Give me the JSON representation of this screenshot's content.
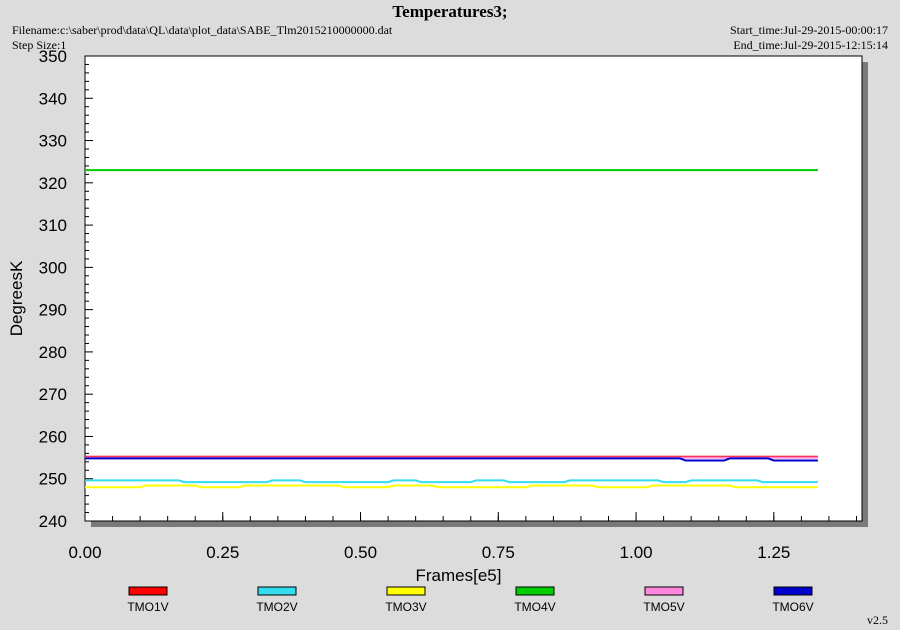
{
  "header": {
    "title": "Temperatures3;",
    "filename": "Filename:c:\\saber\\prod\\data\\QL\\data\\plot_data\\SABE_Tlm2015210000000.dat",
    "step_size": "Step Size:1",
    "start_time": "Start_time:Jul-29-2015-00:00:17",
    "end_time": "End_time:Jul-29-2015-12:15:14"
  },
  "version": "v2.5",
  "chart_data": {
    "type": "line",
    "title": "Temperatures3;",
    "xlabel": "Frames[e5]",
    "ylabel": "DegreesK",
    "xlim": [
      0,
      1.41
    ],
    "ylim": [
      240,
      350
    ],
    "xticks": [
      0.0,
      0.25,
      0.5,
      0.75,
      1.0,
      1.25
    ],
    "xtick_labels": [
      "0.00",
      "0.25",
      "0.50",
      "0.75",
      "1.00",
      "1.25"
    ],
    "yticks": [
      240,
      250,
      260,
      270,
      280,
      290,
      300,
      310,
      320,
      330,
      340,
      350
    ],
    "ytick_labels": [
      "240",
      "250",
      "260",
      "270",
      "280",
      "290",
      "300",
      "310",
      "320",
      "330",
      "340",
      "350"
    ],
    "grid": false,
    "legend_position": "bottom",
    "series": [
      {
        "name": "TMO1V",
        "color": "#ff0000",
        "x": [
          0.0,
          1.33
        ],
        "y": [
          255.2,
          255.2
        ]
      },
      {
        "name": "TMO2V",
        "color": "#33ddee",
        "x": [
          0.0,
          0.17,
          0.18,
          0.33,
          0.34,
          0.39,
          0.4,
          0.55,
          0.56,
          0.6,
          0.61,
          0.7,
          0.71,
          0.76,
          0.77,
          0.87,
          0.88,
          1.04,
          1.05,
          1.09,
          1.1,
          1.22,
          1.23,
          1.33
        ],
        "y": [
          249.6,
          249.6,
          249.2,
          249.2,
          249.6,
          249.6,
          249.2,
          249.2,
          249.6,
          249.6,
          249.2,
          249.2,
          249.6,
          249.6,
          249.2,
          249.2,
          249.6,
          249.6,
          249.2,
          249.2,
          249.6,
          249.6,
          249.2,
          249.2
        ]
      },
      {
        "name": "TMO3V",
        "color": "#ffff00",
        "x": [
          0.0,
          0.1,
          0.11,
          0.2,
          0.21,
          0.28,
          0.29,
          0.46,
          0.47,
          0.55,
          0.56,
          0.63,
          0.64,
          0.8,
          0.81,
          0.92,
          0.93,
          1.02,
          1.03,
          1.17,
          1.18,
          1.33
        ],
        "y": [
          248.0,
          248.0,
          248.4,
          248.4,
          248.0,
          248.0,
          248.4,
          248.4,
          248.0,
          248.0,
          248.4,
          248.4,
          248.0,
          248.0,
          248.4,
          248.4,
          248.0,
          248.0,
          248.4,
          248.4,
          248.0,
          248.0
        ]
      },
      {
        "name": "TMO4V",
        "color": "#00cc00",
        "x": [
          0.0,
          1.33
        ],
        "y": [
          323.0,
          323.0
        ]
      },
      {
        "name": "TMO5V",
        "color": "#ff88dd",
        "x": [
          0.0,
          1.33
        ],
        "y": [
          255.0,
          255.0
        ]
      },
      {
        "name": "TMO6V",
        "color": "#0000cc",
        "x": [
          0.0,
          1.08,
          1.09,
          1.16,
          1.17,
          1.24,
          1.25,
          1.33
        ],
        "y": [
          254.8,
          254.8,
          254.3,
          254.3,
          254.8,
          254.8,
          254.3,
          254.3
        ]
      }
    ]
  }
}
